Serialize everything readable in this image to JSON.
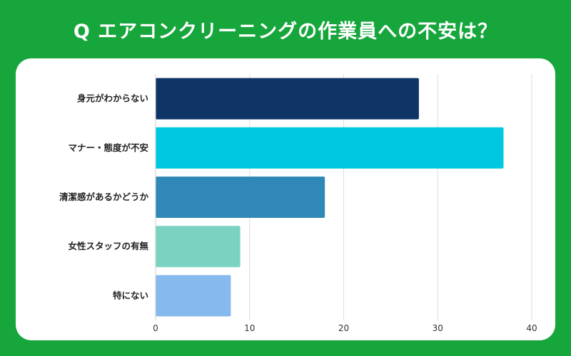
{
  "chart_data": {
    "type": "bar",
    "orientation": "horizontal",
    "title": "Q エアコンクリーニングの作業員への不安は？",
    "categories": [
      "身元がわからない",
      "マナー・態度が不安",
      "清潔感があるかどうか",
      "女性スタッフの有無",
      "特にない"
    ],
    "values": [
      28,
      37,
      18,
      9,
      8
    ],
    "colors": [
      "#0f3567",
      "#00c8e0",
      "#2f88b7",
      "#7ad3c0",
      "#86b9ee"
    ],
    "xlim": [
      0,
      40
    ],
    "xticks": [
      0,
      10,
      20,
      30,
      40
    ],
    "grid": true,
    "xlabel": "",
    "ylabel": ""
  }
}
